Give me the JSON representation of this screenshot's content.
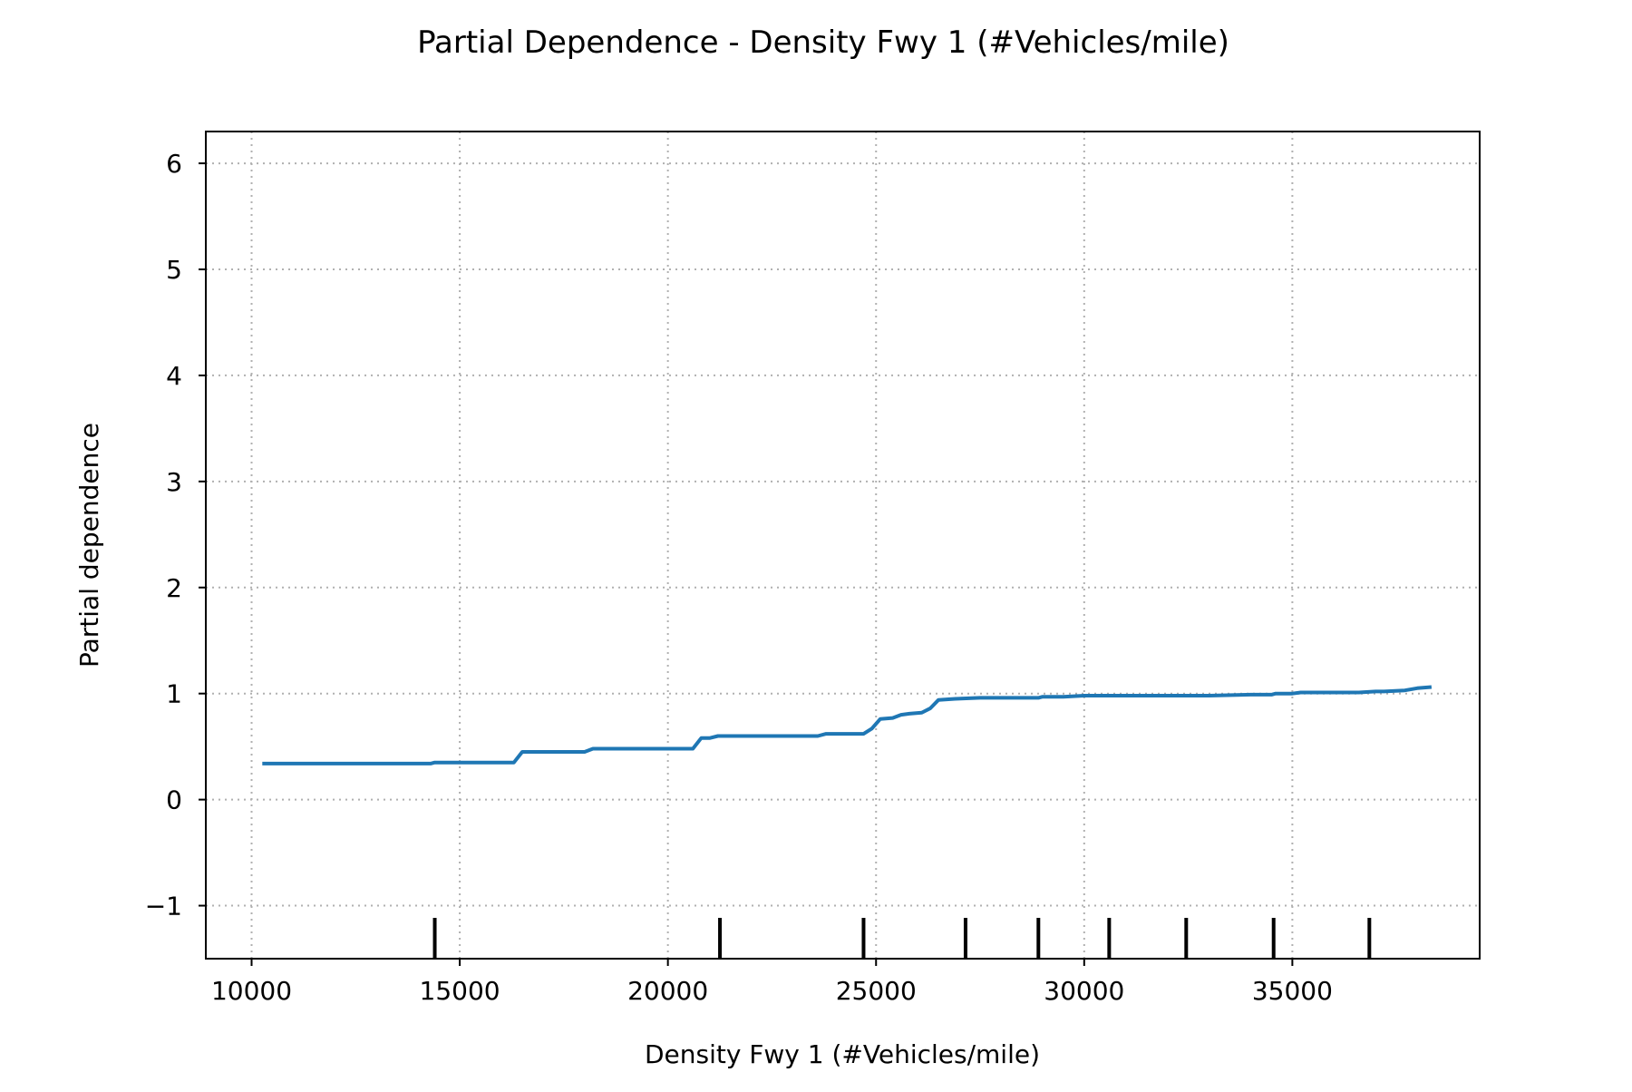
{
  "chart_data": {
    "type": "line",
    "title": "Partial Dependence - Density Fwy 1 (#Vehicles/mile)",
    "xlabel": "Density Fwy 1 (#Vehicles/mile)",
    "ylabel": "Partial dependence",
    "xlim": [
      8900,
      39500
    ],
    "ylim": [
      -1.5,
      6.3
    ],
    "x_ticks": [
      10000,
      15000,
      20000,
      25000,
      30000,
      35000
    ],
    "x_tick_labels": [
      "10000",
      "15000",
      "20000",
      "25000",
      "30000",
      "35000"
    ],
    "y_ticks": [
      -1,
      0,
      1,
      2,
      3,
      4,
      5,
      6
    ],
    "y_tick_labels": [
      "−1",
      "0",
      "1",
      "2",
      "3",
      "4",
      "5",
      "6"
    ],
    "grid": true,
    "series": [
      {
        "color": "#1f77b4",
        "x": [
          10300,
          14300,
          14400,
          15300,
          16300,
          16500,
          18000,
          18200,
          20600,
          20800,
          21000,
          21200,
          23600,
          23800,
          24700,
          24900,
          25100,
          25400,
          25600,
          25800,
          26100,
          26300,
          26500,
          26900,
          27500,
          28900,
          29000,
          29500,
          30000,
          31000,
          32000,
          33000,
          34000,
          34500,
          34600,
          34800,
          35000,
          35200,
          36000,
          36600,
          37000,
          37200,
          37700,
          38000,
          38300
        ],
        "y": [
          0.34,
          0.34,
          0.35,
          0.35,
          0.35,
          0.45,
          0.45,
          0.48,
          0.48,
          0.58,
          0.58,
          0.6,
          0.6,
          0.62,
          0.62,
          0.67,
          0.76,
          0.77,
          0.8,
          0.81,
          0.82,
          0.86,
          0.94,
          0.95,
          0.96,
          0.96,
          0.97,
          0.97,
          0.98,
          0.98,
          0.98,
          0.98,
          0.99,
          0.99,
          1.0,
          1.0,
          1.0,
          1.01,
          1.01,
          1.01,
          1.02,
          1.02,
          1.03,
          1.05,
          1.06
        ]
      }
    ],
    "rug_deciles": [
      14400,
      21250,
      24700,
      27150,
      28900,
      30600,
      32450,
      34550,
      36850
    ]
  }
}
